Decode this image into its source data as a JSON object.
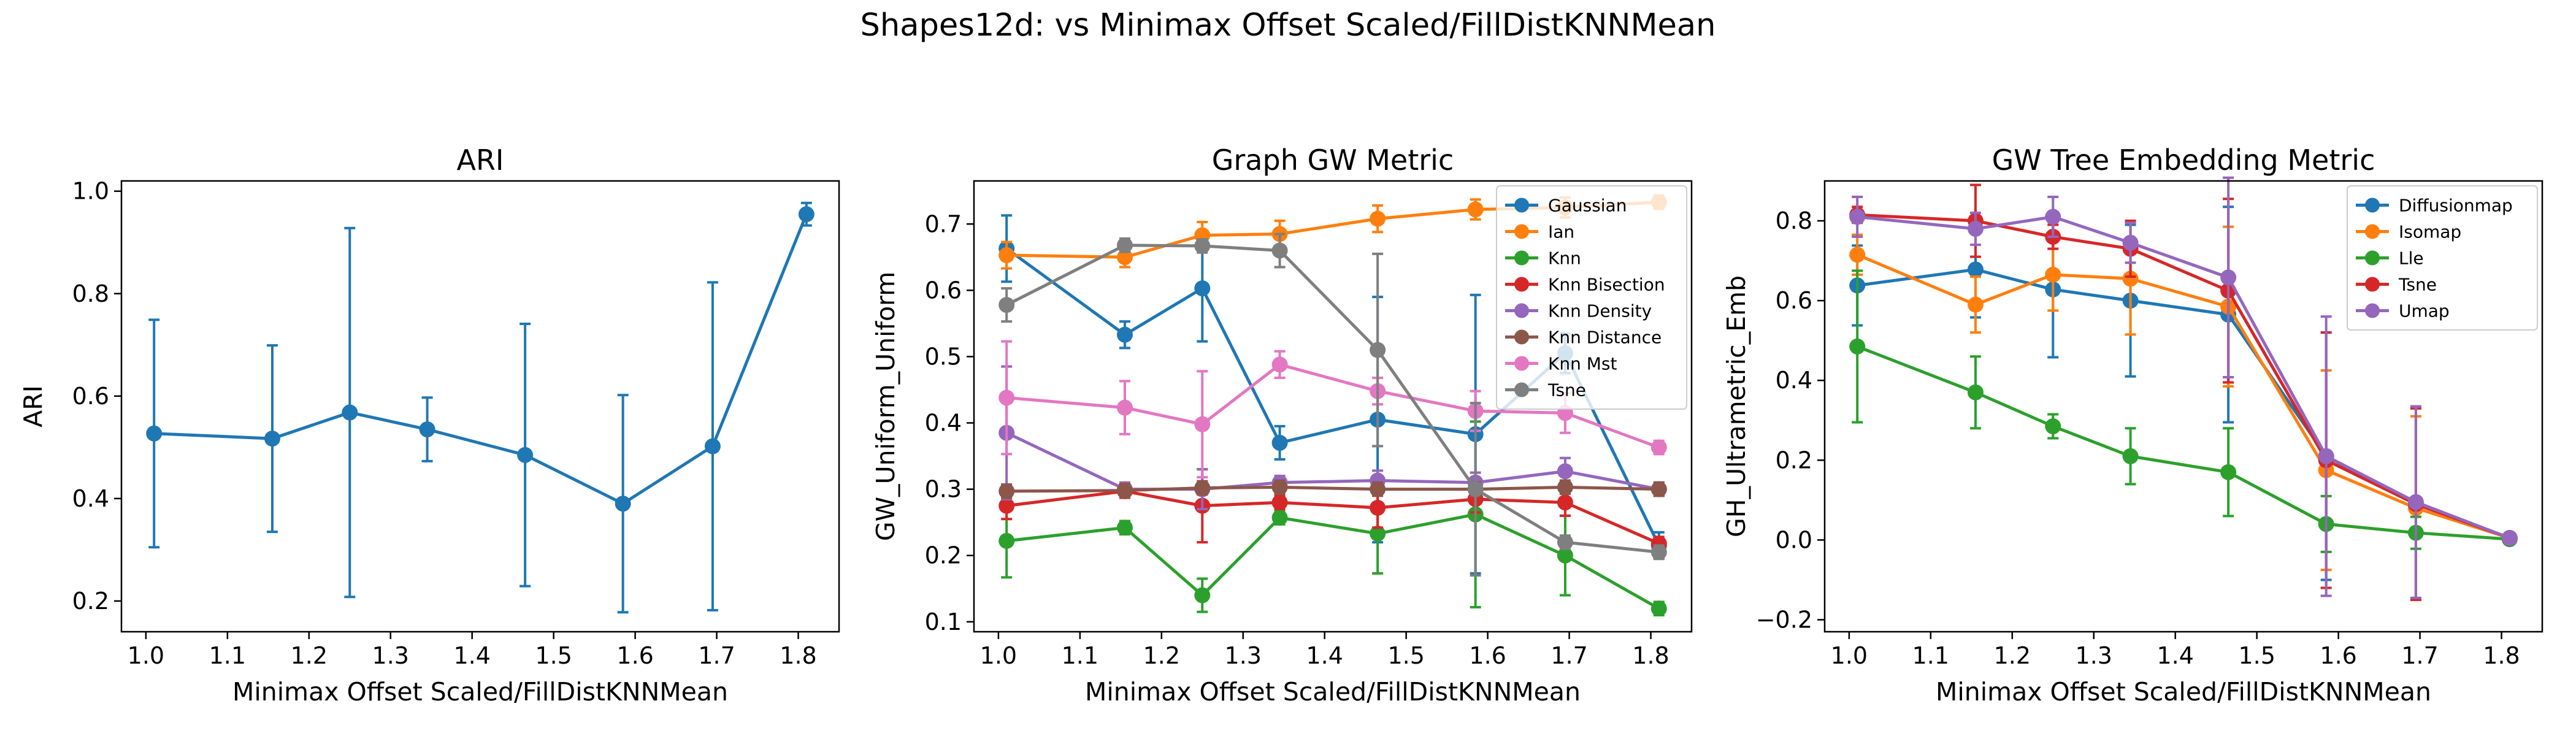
{
  "figure": {
    "suptitle": "Shapes12d: vs Minimax Offset Scaled/FillDistKNNMean"
  },
  "colors": {
    "blue": "#1f77b4",
    "orange": "#ff7f0e",
    "green": "#2ca02c",
    "red": "#d62728",
    "purple": "#9467bd",
    "brown": "#8c564b",
    "pink": "#e377c2",
    "gray": "#7f7f7f"
  },
  "chart_data": [
    {
      "type": "line",
      "title": "ARI",
      "xlabel": "Minimax Offset Scaled/FillDistKNNMean",
      "ylabel": "ARI",
      "x": [
        1.01,
        1.155,
        1.25,
        1.345,
        1.465,
        1.585,
        1.695,
        1.81
      ],
      "xlim": [
        0.97,
        1.85
      ],
      "ylim": [
        0.14,
        1.02
      ],
      "xticks": [
        1.0,
        1.1,
        1.2,
        1.3,
        1.4,
        1.5,
        1.6,
        1.7,
        1.8
      ],
      "xtick_labels": [
        "1.0",
        "1.1",
        "1.2",
        "1.3",
        "1.4",
        "1.5",
        "1.6",
        "1.7",
        "1.8"
      ],
      "yticks": [
        0.2,
        0.4,
        0.6,
        0.8,
        1.0
      ],
      "ytick_labels": [
        "0.2",
        "0.4",
        "0.6",
        "0.8",
        "1.0"
      ],
      "legend": null,
      "series": [
        {
          "name": "",
          "color": "#1f77b4",
          "values": [
            0.527,
            0.517,
            0.568,
            0.535,
            0.485,
            0.39,
            0.502,
            0.955
          ],
          "errors": [
            0.222,
            0.182,
            0.36,
            0.062,
            0.256,
            0.212,
            0.32,
            0.022
          ]
        }
      ]
    },
    {
      "type": "line",
      "title": "Graph GW Metric",
      "xlabel": "Minimax Offset Scaled/FillDistKNNMean",
      "ylabel": "GW_Uniform_Uniform",
      "x": [
        1.01,
        1.155,
        1.25,
        1.345,
        1.465,
        1.585,
        1.695,
        1.81
      ],
      "xlim": [
        0.97,
        1.85
      ],
      "ylim": [
        0.085,
        0.765
      ],
      "xticks": [
        1.0,
        1.1,
        1.2,
        1.3,
        1.4,
        1.5,
        1.6,
        1.7,
        1.8
      ],
      "xtick_labels": [
        "1.0",
        "1.1",
        "1.2",
        "1.3",
        "1.4",
        "1.5",
        "1.6",
        "1.7",
        "1.8"
      ],
      "yticks": [
        0.1,
        0.2,
        0.3,
        0.4,
        0.5,
        0.6,
        0.7
      ],
      "ytick_labels": [
        "0.1",
        "0.2",
        "0.3",
        "0.4",
        "0.5",
        "0.6",
        "0.7"
      ],
      "legend": "top-right",
      "series": [
        {
          "name": "Gaussian",
          "color": "#1f77b4",
          "values": [
            0.663,
            0.533,
            0.603,
            0.37,
            0.405,
            0.383,
            0.505,
            0.215
          ],
          "errors": [
            0.05,
            0.02,
            0.08,
            0.025,
            0.185,
            0.21,
            0.03,
            0.02
          ]
        },
        {
          "name": "Ian",
          "color": "#ff7f0e",
          "values": [
            0.653,
            0.65,
            0.683,
            0.685,
            0.708,
            0.722,
            0.725,
            0.733
          ],
          "errors": [
            0.02,
            0.015,
            0.02,
            0.02,
            0.02,
            0.015,
            0.015,
            0.01
          ]
        },
        {
          "name": "Knn",
          "color": "#2ca02c",
          "values": [
            0.222,
            0.242,
            0.14,
            0.257,
            0.233,
            0.262,
            0.2,
            0.12
          ],
          "errors": [
            0.055,
            0.01,
            0.025,
            0.01,
            0.06,
            0.14,
            0.06,
            0.01
          ]
        },
        {
          "name": "Knn Bisection",
          "color": "#d62728",
          "values": [
            0.275,
            0.297,
            0.275,
            0.28,
            0.272,
            0.285,
            0.28,
            0.218
          ],
          "errors": [
            0.02,
            0.01,
            0.055,
            0.01,
            0.03,
            0.02,
            0.02,
            0.01
          ]
        },
        {
          "name": "Knn Density",
          "color": "#9467bd",
          "values": [
            0.385,
            0.3,
            0.3,
            0.31,
            0.313,
            0.31,
            0.327,
            0.3
          ],
          "errors": [
            0.1,
            0.01,
            0.03,
            0.01,
            0.015,
            0.015,
            0.02,
            0.01
          ]
        },
        {
          "name": "Knn Distance",
          "color": "#8c564b",
          "values": [
            0.297,
            0.298,
            0.302,
            0.303,
            0.3,
            0.3,
            0.303,
            0.3
          ],
          "errors": [
            0.01,
            0.01,
            0.01,
            0.01,
            0.01,
            0.01,
            0.01,
            0.01
          ]
        },
        {
          "name": "Knn Mst",
          "color": "#e377c2",
          "values": [
            0.438,
            0.423,
            0.398,
            0.488,
            0.448,
            0.418,
            0.415,
            0.363
          ],
          "errors": [
            0.085,
            0.04,
            0.08,
            0.02,
            0.02,
            0.03,
            0.03,
            0.01
          ]
        },
        {
          "name": "Tsne",
          "color": "#7f7f7f",
          "values": [
            0.578,
            0.668,
            0.667,
            0.66,
            0.51,
            0.3,
            0.22,
            0.205
          ],
          "errors": [
            0.025,
            0.01,
            0.01,
            0.025,
            0.145,
            0.13,
            0.01,
            0.01
          ]
        }
      ]
    },
    {
      "type": "line",
      "title": "GW Tree Embedding Metric",
      "xlabel": "Minimax Offset Scaled/FillDistKNNMean",
      "ylabel": "GH_Ultrametric_Emb",
      "x": [
        1.01,
        1.155,
        1.25,
        1.345,
        1.465,
        1.585,
        1.695,
        1.81
      ],
      "xlim": [
        0.97,
        1.85
      ],
      "ylim": [
        -0.23,
        0.9
      ],
      "xticks": [
        1.0,
        1.1,
        1.2,
        1.3,
        1.4,
        1.5,
        1.6,
        1.7,
        1.8
      ],
      "xtick_labels": [
        "1.0",
        "1.1",
        "1.2",
        "1.3",
        "1.4",
        "1.5",
        "1.6",
        "1.7",
        "1.8"
      ],
      "yticks": [
        -0.2,
        0.0,
        0.2,
        0.4,
        0.6,
        0.8
      ],
      "ytick_labels": [
        "−0.2",
        "0.0",
        "0.2",
        "0.4",
        "0.6",
        "0.8"
      ],
      "legend": "top-right",
      "series": [
        {
          "name": "Diffusionmap",
          "color": "#1f77b4",
          "values": [
            0.638,
            0.678,
            0.628,
            0.6,
            0.565,
            0.21,
            0.09,
            0.005
          ],
          "errors": [
            0.1,
            0.12,
            0.17,
            0.19,
            0.27,
            0.31,
            0.24,
            0.01
          ]
        },
        {
          "name": "Isomap",
          "color": "#ff7f0e",
          "values": [
            0.715,
            0.59,
            0.665,
            0.655,
            0.585,
            0.175,
            0.08,
            0.005
          ],
          "errors": [
            0.05,
            0.07,
            0.09,
            0.14,
            0.2,
            0.25,
            0.23,
            0.01
          ]
        },
        {
          "name": "Lle",
          "color": "#2ca02c",
          "values": [
            0.485,
            0.37,
            0.285,
            0.21,
            0.17,
            0.04,
            0.018,
            0.002
          ],
          "errors": [
            0.19,
            0.09,
            0.03,
            0.07,
            0.11,
            0.07,
            0.04,
            0.005
          ]
        },
        {
          "name": "Tsne",
          "color": "#d62728",
          "values": [
            0.815,
            0.8,
            0.76,
            0.73,
            0.625,
            0.2,
            0.09,
            0.005
          ],
          "errors": [
            0.02,
            0.09,
            0.03,
            0.07,
            0.23,
            0.32,
            0.24,
            0.01
          ]
        },
        {
          "name": "Umap",
          "color": "#9467bd",
          "values": [
            0.81,
            0.78,
            0.81,
            0.745,
            0.658,
            0.21,
            0.095,
            0.005
          ],
          "errors": [
            0.05,
            0.04,
            0.05,
            0.05,
            0.25,
            0.35,
            0.24,
            0.01
          ]
        }
      ]
    }
  ]
}
